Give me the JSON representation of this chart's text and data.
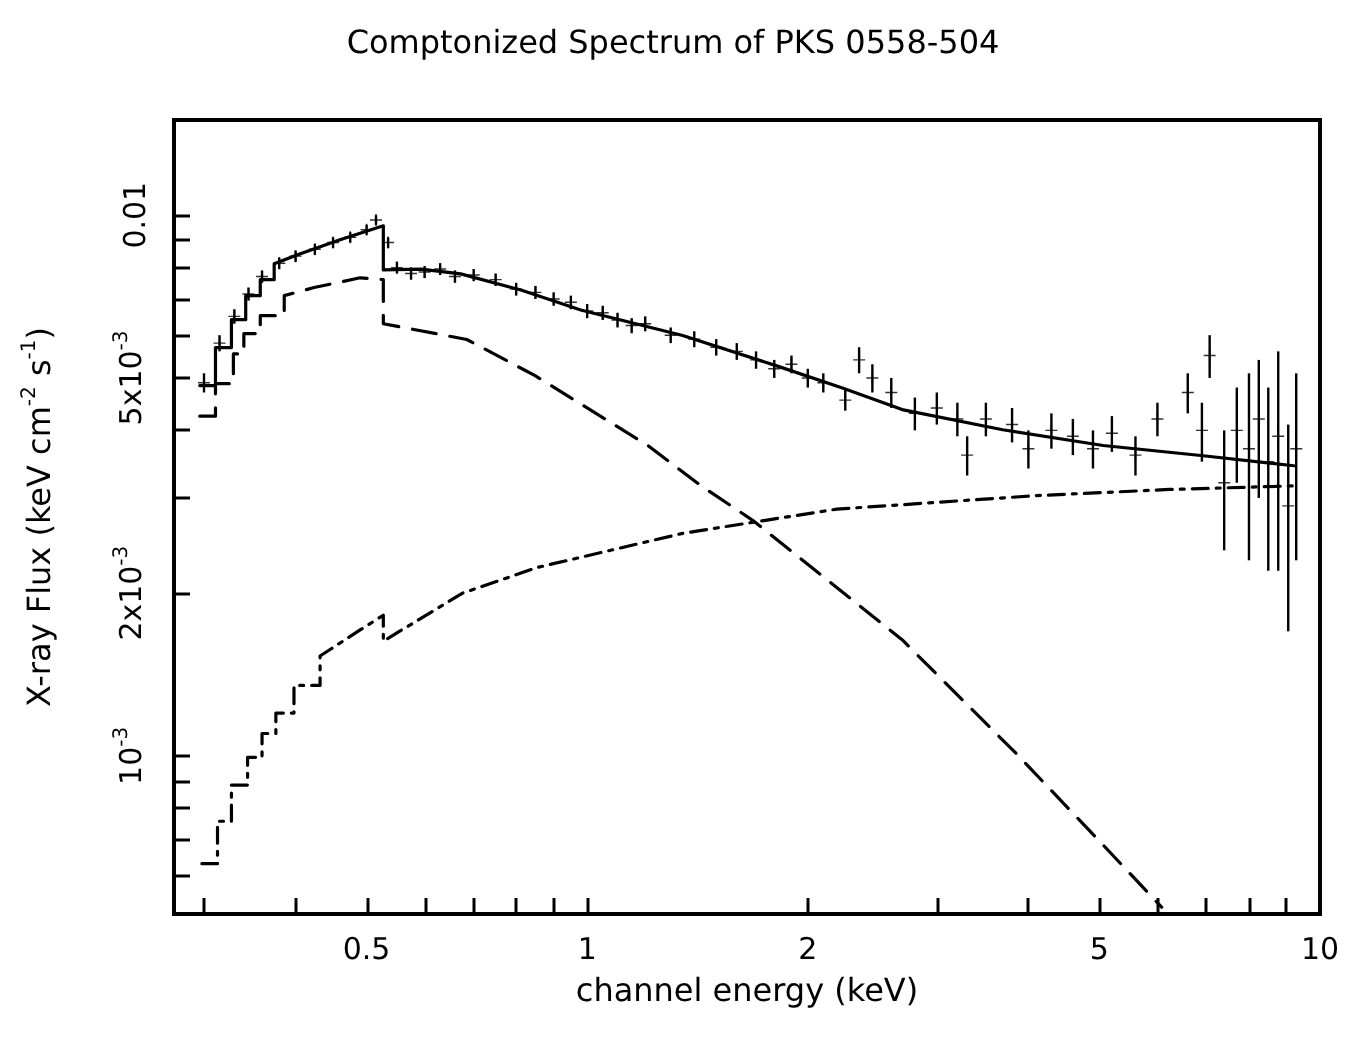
{
  "chart_data": {
    "type": "line",
    "title": "Comptonized Spectrum of PKS 0558-504",
    "xlabel": "channel energy (keV)",
    "ylabel": "X-ray Flux (keV cm$^{-2}$ s$^{-1}$)",
    "log": "xy",
    "xlim": [
      0.273,
      10
    ],
    "ylim": [
      0.00051,
      0.015
    ],
    "xticks": [
      {
        "value": 0.3,
        "label": null
      },
      {
        "value": 0.4,
        "label": null
      },
      0.5,
      {
        "value": 0.6,
        "label": null
      },
      {
        "value": 0.7,
        "label": null
      },
      {
        "value": 0.8,
        "label": null
      },
      {
        "value": 0.9,
        "label": null
      },
      1,
      2,
      {
        "value": 3,
        "label": null
      },
      {
        "value": 4,
        "label": null
      },
      5,
      {
        "value": 6,
        "label": null
      },
      {
        "value": 7,
        "label": null
      },
      {
        "value": 8,
        "label": null
      },
      {
        "value": 9,
        "label": null
      },
      10
    ],
    "yticks": [
      {
        "value": 0.0006,
        "label": null
      },
      {
        "value": 0.0007,
        "label": null
      },
      {
        "value": 0.0008,
        "label": null
      },
      {
        "value": 0.0009,
        "label": null
      },
      {
        "value": 0.001,
        "label": "10$^{-3}$"
      },
      {
        "value": 0.002,
        "label": "2x10$^{-3}$"
      },
      {
        "value": 0.003,
        "label": null
      },
      {
        "value": 0.004,
        "label": null
      },
      {
        "value": 0.005,
        "label": "5x10$^{-3}$"
      },
      {
        "value": 0.006,
        "label": null
      },
      {
        "value": 0.007,
        "label": null
      },
      {
        "value": 0.008,
        "label": null
      },
      {
        "value": 0.009,
        "label": null
      },
      0.01
    ],
    "series": [
      {
        "type": "scatter",
        "marker": "cross",
        "color": "#000000",
        "x": [
          0.3,
          0.315,
          0.33,
          0.345,
          0.36,
          0.38,
          0.4,
          0.425,
          0.45,
          0.475,
          0.5,
          0.515,
          0.535,
          0.55,
          0.575,
          0.6,
          0.63,
          0.66,
          0.7,
          0.75,
          0.8,
          0.85,
          0.9,
          0.95,
          1.0,
          1.05,
          1.1,
          1.15,
          1.2,
          1.3,
          1.4,
          1.5,
          1.6,
          1.7,
          1.8,
          1.9,
          2.0,
          2.1,
          2.25,
          2.35,
          2.45,
          2.6,
          2.8,
          3.0,
          3.2,
          3.3,
          3.5,
          3.8,
          4.0,
          4.3,
          4.6,
          4.9,
          5.2,
          5.6,
          6.0,
          6.6,
          6.9,
          7.07,
          7.4,
          7.7,
          8.0,
          8.25,
          8.5,
          8.77,
          9.05,
          9.28
        ],
        "values": [
          0.0049,
          0.0058,
          0.0065,
          0.00715,
          0.0077,
          0.00815,
          0.0084,
          0.00865,
          0.0089,
          0.0091,
          0.0094,
          0.0098,
          0.0089,
          0.008,
          0.0078,
          0.00785,
          0.00795,
          0.0077,
          0.00775,
          0.0076,
          0.0073,
          0.0072,
          0.007,
          0.0069,
          0.00665,
          0.0066,
          0.0064,
          0.00625,
          0.0063,
          0.006,
          0.0059,
          0.0057,
          0.0056,
          0.0054,
          0.0052,
          0.0053,
          0.005,
          0.0049,
          0.00455,
          0.0054,
          0.005,
          0.0047,
          0.0043,
          0.0044,
          0.0042,
          0.0036,
          0.0042,
          0.0041,
          0.0037,
          0.004,
          0.0039,
          0.0037,
          0.00395,
          0.0036,
          0.0042,
          0.0047,
          0.004,
          0.0055,
          0.0032,
          0.004,
          0.0037,
          0.0042,
          0.0035,
          0.0039,
          0.0029,
          0.0037
        ],
        "errors": [
          0.0002,
          0.0002,
          0.0002,
          0.0002,
          0.0002,
          0.0002,
          0.0002,
          0.0002,
          0.0002,
          0.0002,
          0.0002,
          0.0002,
          0.0002,
          0.0002,
          0.0002,
          0.0002,
          0.0002,
          0.0002,
          0.0002,
          0.0002,
          0.0002,
          0.0002,
          0.0002,
          0.0002,
          0.0002,
          0.0002,
          0.0002,
          0.0002,
          0.0002,
          0.0002,
          0.0002,
          0.0002,
          0.0002,
          0.0002,
          0.0002,
          0.0002,
          0.0002,
          0.0002,
          0.0002,
          0.0003,
          0.0003,
          0.0003,
          0.0003,
          0.0003,
          0.0003,
          0.0003,
          0.0003,
          0.0003,
          0.0003,
          0.0003,
          0.0003,
          0.0003,
          0.0003,
          0.0003,
          0.0003,
          0.0004,
          0.0005,
          0.0005,
          0.0008,
          0.0008,
          0.0014,
          0.0012,
          0.0013,
          0.0017,
          0.0012,
          0.0014
        ]
      },
      {
        "line_style": "solid",
        "color": "#000000",
        "x": [
          0.296,
          0.311,
          0.311,
          0.327,
          0.327,
          0.342,
          0.342,
          0.358,
          0.358,
          0.374,
          0.374,
          0.406,
          0.46,
          0.527,
          0.527,
          0.593,
          0.672,
          0.812,
          0.98,
          1.35,
          1.81,
          2.23,
          2.69,
          3.69,
          5.06,
          6.93,
          9.21
        ],
        "values": [
          0.00484,
          0.00484,
          0.00569,
          0.00569,
          0.00641,
          0.00641,
          0.0071,
          0.0071,
          0.0076,
          0.0076,
          0.00813,
          0.00849,
          0.00901,
          0.00956,
          0.00792,
          0.00795,
          0.00779,
          0.00727,
          0.00668,
          0.00599,
          0.00527,
          0.00479,
          0.00437,
          0.00401,
          0.00375,
          0.00359,
          0.00344
        ]
      },
      {
        "line_style": "dashed",
        "color": "#000000",
        "x": [
          0.296,
          0.311,
          0.311,
          0.329,
          0.329,
          0.34,
          0.34,
          0.358,
          0.358,
          0.386,
          0.386,
          0.424,
          0.49,
          0.527,
          0.527,
          0.685,
          0.849,
          1.21,
          1.43,
          1.68,
          2.69,
          3.85,
          5.06,
          6.08
        ],
        "values": [
          0.00425,
          0.00425,
          0.00488,
          0.00488,
          0.00554,
          0.00554,
          0.00604,
          0.00604,
          0.00652,
          0.00652,
          0.0071,
          0.00735,
          0.00766,
          0.0076,
          0.0063,
          0.00589,
          0.00505,
          0.00375,
          0.00316,
          0.00273,
          0.00164,
          0.00101,
          0.000684,
          0.000525
        ]
      },
      {
        "line_style": "dotted",
        "color": "#000000",
        "x": [
          0.298,
          0.313,
          0.313,
          0.327,
          0.327,
          0.344,
          0.344,
          0.36,
          0.36,
          0.376,
          0.376,
          0.398,
          0.398,
          0.432,
          0.432,
          0.49,
          0.527,
          0.527,
          0.676,
          0.854,
          1.35,
          1.76,
          2.19,
          4.11,
          6.23,
          9.34
        ],
        "values": [
          0.000632,
          0.000632,
          0.000757,
          0.000757,
          0.000883,
          0.000883,
          0.000994,
          0.000994,
          0.0011,
          0.0011,
          0.0012,
          0.0012,
          0.00135,
          0.00135,
          0.00153,
          0.00171,
          0.00182,
          0.00163,
          0.002,
          0.00223,
          0.00258,
          0.00273,
          0.00286,
          0.00303,
          0.00311,
          0.00316
        ]
      }
    ]
  }
}
